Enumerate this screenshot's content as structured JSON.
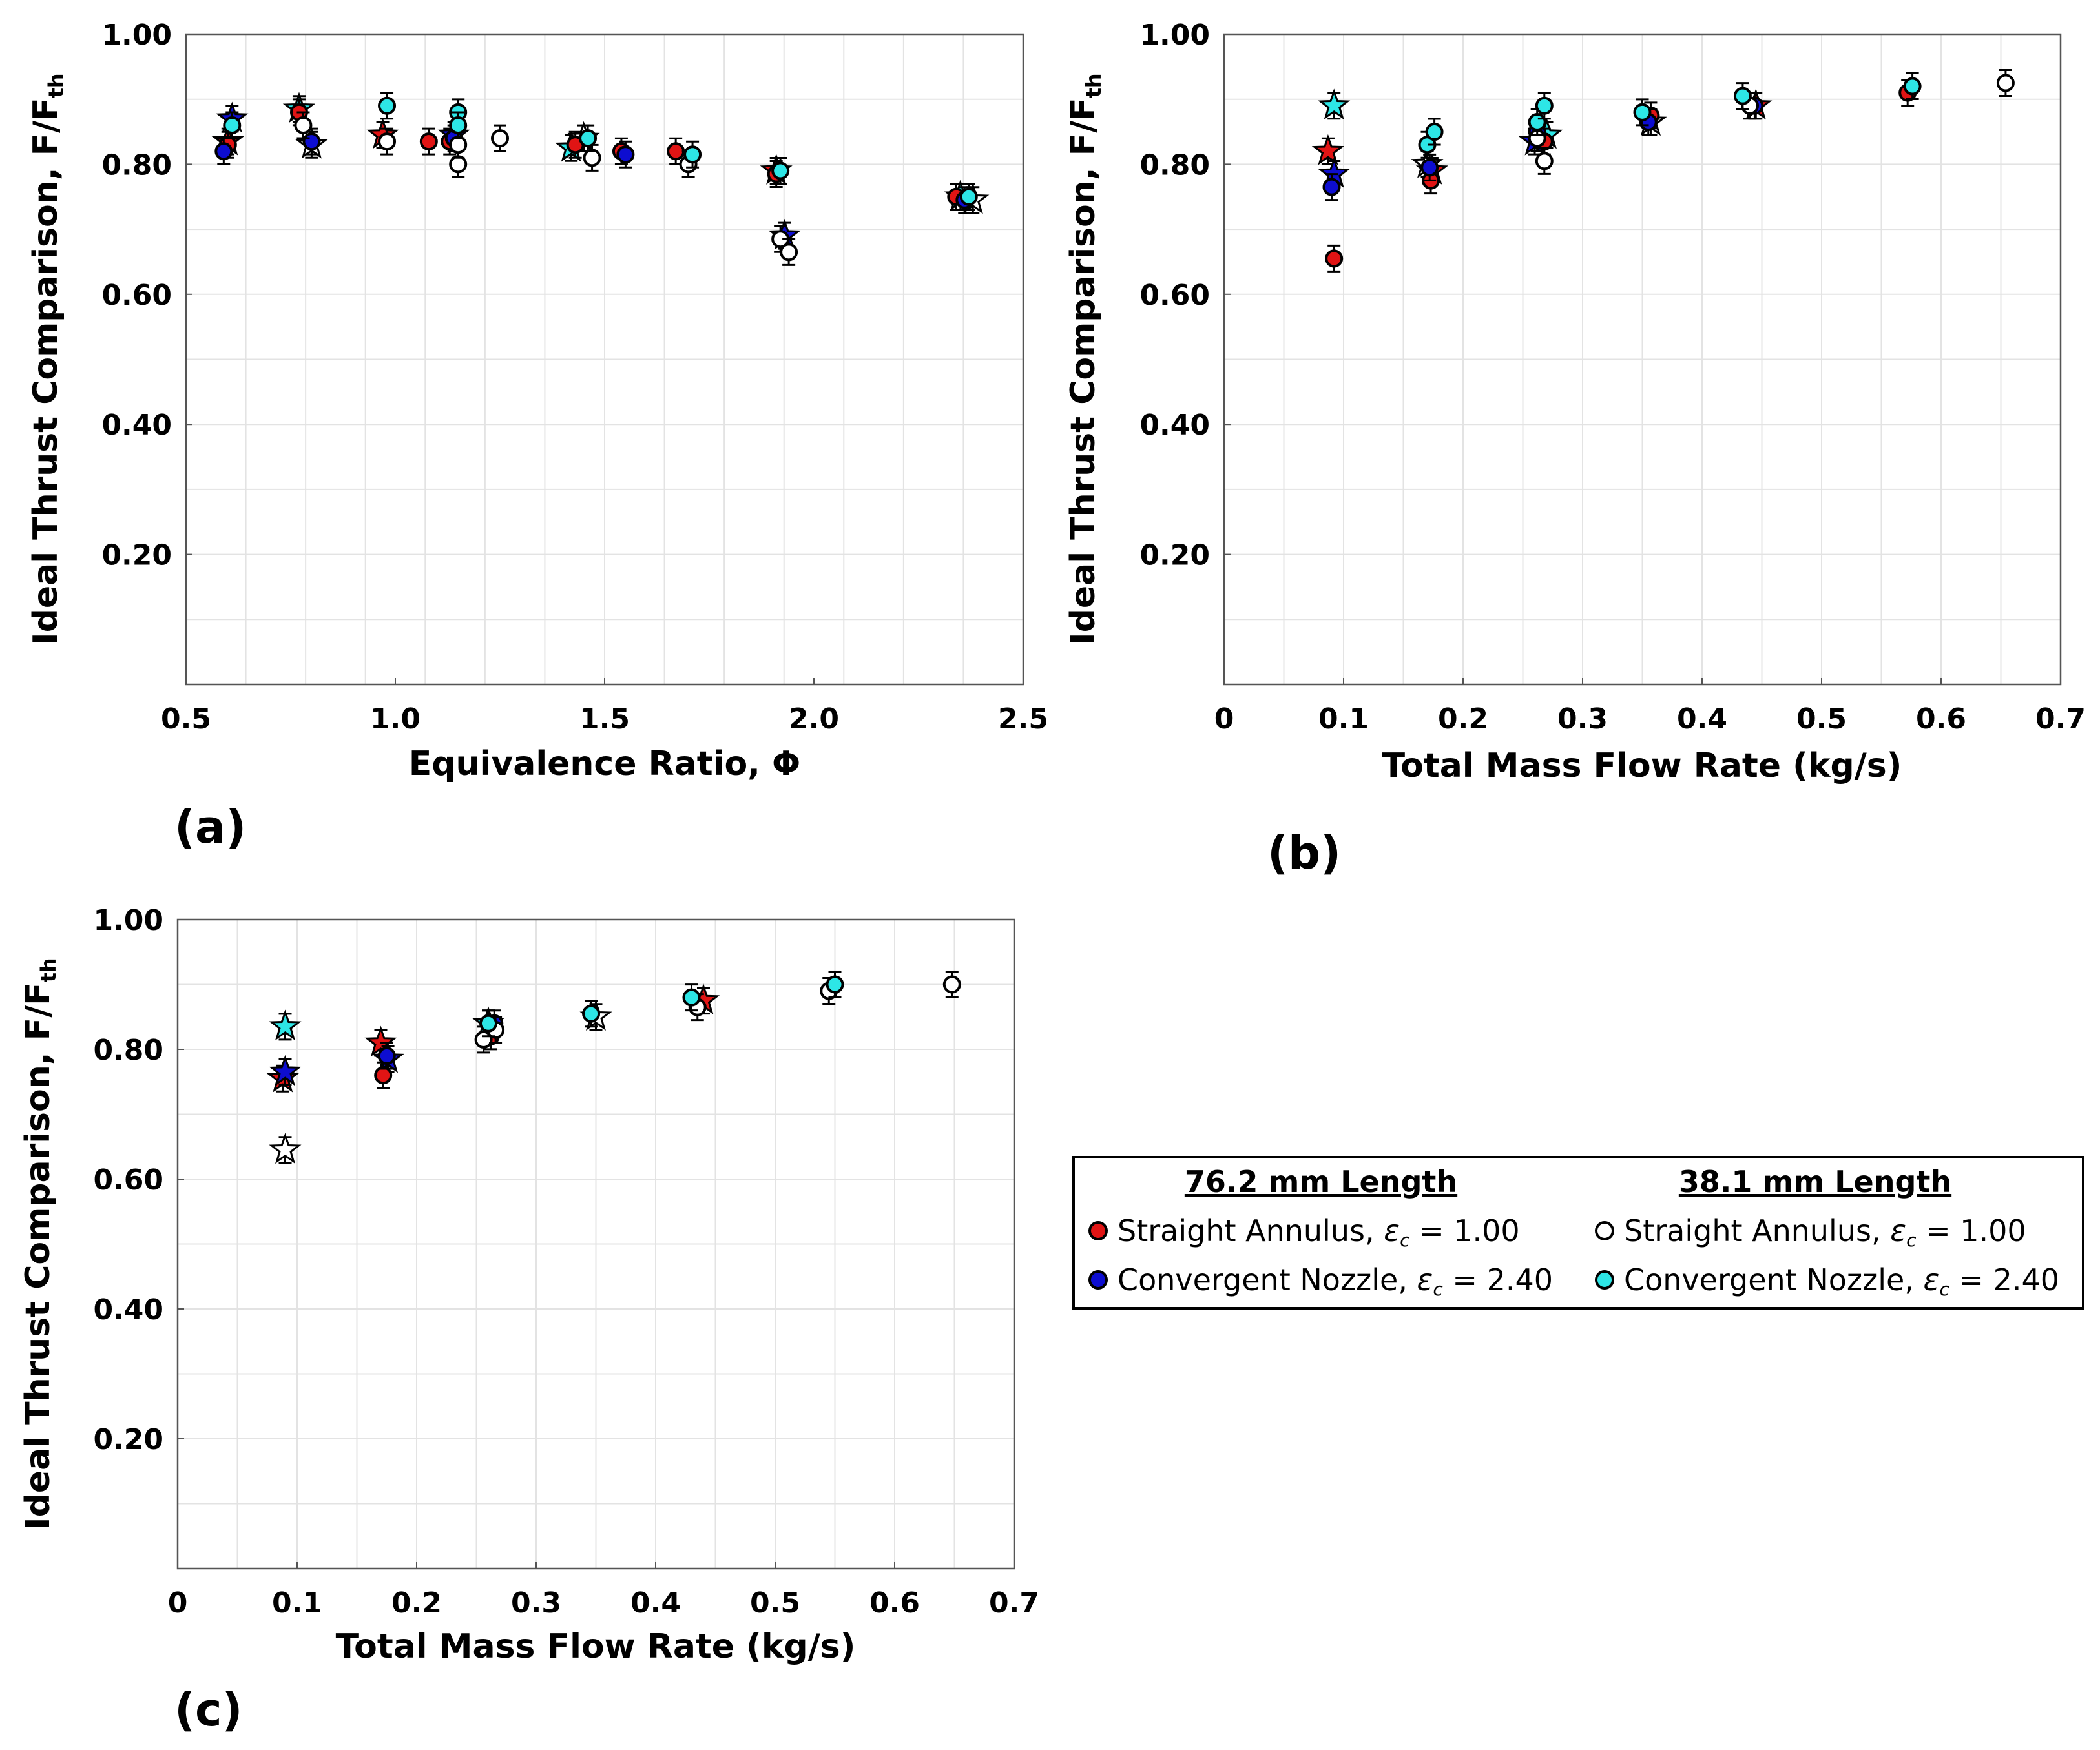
{
  "colors": {
    "straight_76": "#e01414",
    "convergent_76": "#0d0dd0",
    "straight_38": "#ffffff",
    "convergent_38": "#2de6e6"
  },
  "chart_data": [
    {
      "id": "a",
      "panel_label": "(a)",
      "type": "scatter",
      "xlabel": "Equivalence Ratio, Φ",
      "ylabel": "Ideal Thrust Comparison, F/F",
      "ylabel_sub": "th",
      "xlim": [
        0.5,
        2.5
      ],
      "ylim": [
        0.0,
        1.0
      ],
      "xticks": [
        "0.5",
        "1.0",
        "1.5",
        "2.0",
        "2.5"
      ],
      "yticks": [
        "0.20",
        "0.40",
        "0.60",
        "0.80",
        "1.00"
      ],
      "series": [
        {
          "name": "76.2 mm Straight Annulus",
          "marker": "circle",
          "color_key": "straight_76",
          "points": [
            [
              0.6,
              0.83
            ],
            [
              0.77,
              0.88
            ],
            [
              1.08,
              0.835
            ],
            [
              1.13,
              0.835
            ],
            [
              1.43,
              0.83
            ],
            [
              1.54,
              0.82
            ],
            [
              1.67,
              0.82
            ],
            [
              1.91,
              0.785
            ],
            [
              2.34,
              0.75
            ]
          ]
        },
        {
          "name": "76.2 mm Convergent Nozzle",
          "marker": "circle",
          "color_key": "convergent_76",
          "points": [
            [
              0.59,
              0.82
            ],
            [
              0.8,
              0.835
            ],
            [
              1.14,
              0.84
            ],
            [
              1.55,
              0.815
            ],
            [
              2.36,
              0.745
            ]
          ]
        },
        {
          "name": "38.1 mm Straight Annulus",
          "marker": "circle",
          "color_key": "straight_38",
          "points": [
            [
              0.78,
              0.86
            ],
            [
              0.98,
              0.835
            ],
            [
              1.15,
              0.8
            ],
            [
              1.15,
              0.83
            ],
            [
              1.25,
              0.84
            ],
            [
              1.47,
              0.81
            ],
            [
              1.7,
              0.8
            ],
            [
              1.92,
              0.685
            ],
            [
              1.94,
              0.665
            ]
          ]
        },
        {
          "name": "38.1 mm Convergent Nozzle",
          "marker": "circle",
          "color_key": "convergent_38",
          "points": [
            [
              0.61,
              0.86
            ],
            [
              0.98,
              0.89
            ],
            [
              1.15,
              0.88
            ],
            [
              1.15,
              0.86
            ],
            [
              1.46,
              0.84
            ],
            [
              1.71,
              0.815
            ],
            [
              1.92,
              0.79
            ],
            [
              2.37,
              0.75
            ]
          ]
        },
        {
          "name": "Star markers",
          "marker": "star",
          "color_key": "straight_76",
          "points": [
            [
              0.6,
              0.835
            ],
            [
              0.61,
              0.87
            ],
            [
              0.77,
              0.885
            ],
            [
              0.8,
              0.83
            ],
            [
              0.97,
              0.845
            ],
            [
              1.14,
              0.845
            ],
            [
              1.42,
              0.825
            ],
            [
              1.45,
              0.84
            ],
            [
              1.91,
              0.79
            ],
            [
              1.93,
              0.69
            ],
            [
              2.35,
              0.75
            ],
            [
              2.38,
              0.745
            ]
          ]
        }
      ]
    },
    {
      "id": "b",
      "panel_label": "(b)",
      "type": "scatter",
      "xlabel": "Total Mass Flow Rate (kg/s)",
      "ylabel": "Ideal Thrust Comparison, F/F",
      "ylabel_sub": "th",
      "xlim": [
        0,
        0.7
      ],
      "ylim": [
        0.0,
        1.0
      ],
      "xticks": [
        "0",
        "0.1",
        "0.2",
        "0.3",
        "0.4",
        "0.5",
        "0.6",
        "0.7"
      ],
      "yticks": [
        "0.20",
        "0.40",
        "0.60",
        "0.80",
        "1.00"
      ],
      "series": [
        {
          "name": "76.2 mm Straight Annulus",
          "marker": "circle",
          "color_key": "straight_76",
          "points": [
            [
              0.092,
              0.655
            ],
            [
              0.173,
              0.775
            ],
            [
              0.268,
              0.835
            ],
            [
              0.357,
              0.875
            ],
            [
              0.572,
              0.91
            ]
          ]
        },
        {
          "name": "76.2 mm Convergent Nozzle",
          "marker": "circle",
          "color_key": "convergent_76",
          "points": [
            [
              0.09,
              0.765
            ],
            [
              0.172,
              0.795
            ],
            [
              0.262,
              0.85
            ],
            [
              0.355,
              0.865
            ],
            [
              0.444,
              0.89
            ]
          ]
        },
        {
          "name": "38.1 mm Straight Annulus",
          "marker": "circle",
          "color_key": "straight_38",
          "points": [
            [
              0.268,
              0.805
            ],
            [
              0.262,
              0.84
            ],
            [
              0.44,
              0.89
            ],
            [
              0.654,
              0.925
            ]
          ]
        },
        {
          "name": "38.1 mm Convergent Nozzle",
          "marker": "circle",
          "color_key": "convergent_38",
          "points": [
            [
              0.17,
              0.83
            ],
            [
              0.176,
              0.85
            ],
            [
              0.262,
              0.865
            ],
            [
              0.268,
              0.89
            ],
            [
              0.35,
              0.88
            ],
            [
              0.434,
              0.905
            ],
            [
              0.576,
              0.92
            ]
          ]
        },
        {
          "name": "Star markers",
          "marker": "star",
          "color_key": "straight_76",
          "points": [
            [
              0.087,
              0.82
            ],
            [
              0.092,
              0.785
            ],
            [
              0.092,
              0.89
            ],
            [
              0.17,
              0.8
            ],
            [
              0.174,
              0.79
            ],
            [
              0.26,
              0.835
            ],
            [
              0.27,
              0.845
            ],
            [
              0.357,
              0.865
            ],
            [
              0.445,
              0.89
            ]
          ]
        }
      ]
    },
    {
      "id": "c",
      "panel_label": "(c)",
      "type": "scatter",
      "xlabel": "Total Mass Flow Rate (kg/s)",
      "ylabel": "Ideal Thrust Comparison, F/F",
      "ylabel_sub": "th",
      "xlim": [
        0,
        0.7
      ],
      "ylim": [
        0.0,
        1.0
      ],
      "xticks": [
        "0",
        "0.1",
        "0.2",
        "0.3",
        "0.4",
        "0.5",
        "0.6",
        "0.7"
      ],
      "yticks": [
        "0.20",
        "0.40",
        "0.60",
        "0.80",
        "1.00"
      ],
      "series": [
        {
          "name": "76.2 mm Straight Annulus",
          "marker": "circle",
          "color_key": "straight_76",
          "points": [
            [
              0.172,
              0.76
            ],
            [
              0.262,
              0.82
            ]
          ]
        },
        {
          "name": "76.2 mm Convergent Nozzle",
          "marker": "circle",
          "color_key": "convergent_76",
          "points": [
            [
              0.175,
              0.79
            ],
            [
              0.265,
              0.84
            ]
          ]
        },
        {
          "name": "38.1 mm Straight Annulus",
          "marker": "circle",
          "color_key": "straight_38",
          "points": [
            [
              0.256,
              0.815
            ],
            [
              0.266,
              0.83
            ],
            [
              0.435,
              0.865
            ],
            [
              0.545,
              0.89
            ],
            [
              0.648,
              0.9
            ]
          ]
        },
        {
          "name": "38.1 mm Convergent Nozzle",
          "marker": "circle",
          "color_key": "convergent_38",
          "points": [
            [
              0.26,
              0.84
            ],
            [
              0.346,
              0.855
            ],
            [
              0.43,
              0.88
            ],
            [
              0.55,
              0.9
            ]
          ]
        },
        {
          "name": "Star markers",
          "marker": "star",
          "color_key": "straight_76",
          "points": [
            [
              0.088,
              0.755
            ],
            [
              0.09,
              0.765
            ],
            [
              0.09,
              0.835
            ],
            [
              0.09,
              0.645
            ],
            [
              0.17,
              0.81
            ],
            [
              0.176,
              0.785
            ],
            [
              0.26,
              0.84
            ],
            [
              0.35,
              0.85
            ],
            [
              0.44,
              0.875
            ]
          ]
        }
      ]
    }
  ],
  "legend": {
    "group_76_title": "76.2 mm Length",
    "group_38_title": "38.1 mm Length",
    "straight_label": "Straight Annulus, ",
    "convergent_label": "Convergent Nozzle, ",
    "epsilon_symbol": "ε",
    "epsilon_sub": "c",
    "straight_value": " = 1.00",
    "convergent_value": " = 2.40"
  }
}
